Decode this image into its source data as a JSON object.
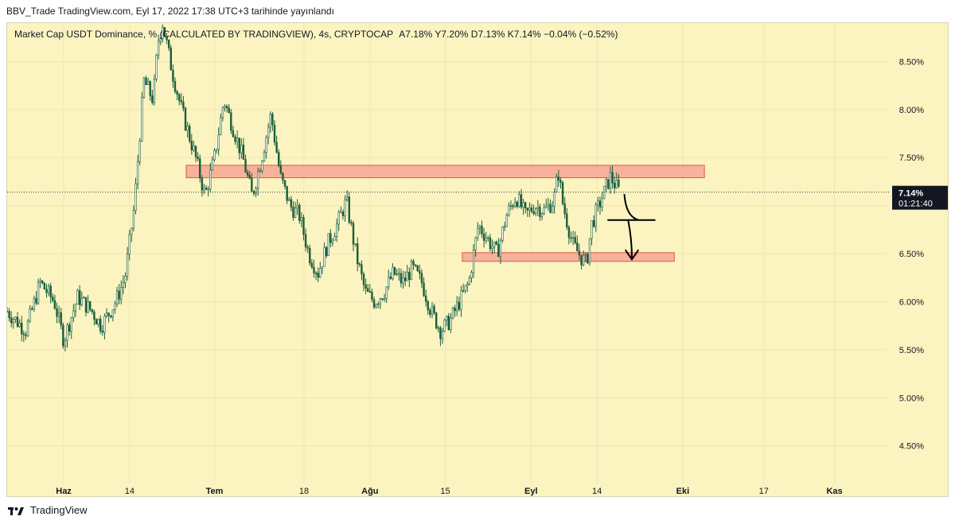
{
  "header": {
    "published": "BBV_Trade TradingView.com, Eyl 17, 2022 17:38 UTC+3 tarihinde yayınlandı"
  },
  "legend": {
    "title": "Market Cap USDT Dominance, % (CALCULATED BY TRADINGVIEW), 4s, CRYPTOCAP",
    "values": "A7.18%  Y7.20%  D7.13%  K7.14%  −0.04% (−0.52%)"
  },
  "price_badge": {
    "value": "7.14%",
    "timer": "01:21:40"
  },
  "footer": {
    "brand": "TradingView"
  },
  "colors": {
    "background": "#fbf4c1",
    "candle": "#1b5e3a",
    "zone_fill": "#f7a593",
    "zone_border": "#e2574c"
  },
  "chart_data": {
    "type": "candlestick",
    "y_unit": "%",
    "y_ticks": [
      "8.50%",
      "8.00%",
      "7.50%",
      "7.00%",
      "6.50%",
      "6.00%",
      "5.50%",
      "5.00%",
      "4.50%"
    ],
    "y_tick_values": [
      8.5,
      8.0,
      7.5,
      7.0,
      6.5,
      6.0,
      5.5,
      5.0,
      4.5
    ],
    "ylim": [
      4.1,
      8.9
    ],
    "x_ticks": [
      {
        "label": "Haz",
        "bold": true,
        "x": 0.06
      },
      {
        "label": "14",
        "bold": false,
        "x": 0.13
      },
      {
        "label": "Tem",
        "bold": true,
        "x": 0.22
      },
      {
        "label": "18",
        "bold": false,
        "x": 0.315
      },
      {
        "label": "Ağu",
        "bold": true,
        "x": 0.385
      },
      {
        "label": "15",
        "bold": false,
        "x": 0.465
      },
      {
        "label": "Eyl",
        "bold": true,
        "x": 0.556
      },
      {
        "label": "14",
        "bold": false,
        "x": 0.626
      },
      {
        "label": "Eki",
        "bold": true,
        "x": 0.717
      },
      {
        "label": "17",
        "bold": false,
        "x": 0.803
      },
      {
        "label": "Kas",
        "bold": true,
        "x": 0.878
      }
    ],
    "last_value": 7.14,
    "price_path": [
      [
        0,
        5.9
      ],
      [
        0.02,
        5.7
      ],
      [
        0.035,
        6.2
      ],
      [
        0.05,
        6.0
      ],
      [
        0.06,
        5.6
      ],
      [
        0.075,
        6.05
      ],
      [
        0.09,
        5.9
      ],
      [
        0.1,
        5.75
      ],
      [
        0.115,
        6.0
      ],
      [
        0.125,
        6.25
      ],
      [
        0.135,
        7.0
      ],
      [
        0.145,
        8.3
      ],
      [
        0.155,
        8.1
      ],
      [
        0.16,
        8.7
      ],
      [
        0.165,
        8.9
      ],
      [
        0.175,
        8.4
      ],
      [
        0.185,
        8.0
      ],
      [
        0.2,
        7.5
      ],
      [
        0.21,
        7.1
      ],
      [
        0.22,
        7.5
      ],
      [
        0.23,
        8.1
      ],
      [
        0.24,
        7.8
      ],
      [
        0.25,
        7.5
      ],
      [
        0.26,
        7.1
      ],
      [
        0.27,
        7.5
      ],
      [
        0.28,
        7.95
      ],
      [
        0.29,
        7.3
      ],
      [
        0.3,
        7.0
      ],
      [
        0.31,
        6.9
      ],
      [
        0.32,
        6.5
      ],
      [
        0.33,
        6.3
      ],
      [
        0.34,
        6.6
      ],
      [
        0.35,
        6.8
      ],
      [
        0.36,
        7.05
      ],
      [
        0.37,
        6.5
      ],
      [
        0.38,
        6.1
      ],
      [
        0.39,
        6.0
      ],
      [
        0.4,
        6.1
      ],
      [
        0.41,
        6.3
      ],
      [
        0.42,
        6.2
      ],
      [
        0.43,
        6.35
      ],
      [
        0.44,
        6.2
      ],
      [
        0.45,
        5.9
      ],
      [
        0.46,
        5.7
      ],
      [
        0.47,
        5.8
      ],
      [
        0.48,
        6.0
      ],
      [
        0.49,
        6.2
      ],
      [
        0.5,
        6.8
      ],
      [
        0.51,
        6.65
      ],
      [
        0.52,
        6.5
      ],
      [
        0.53,
        6.9
      ],
      [
        0.54,
        7.1
      ],
      [
        0.55,
        6.9
      ],
      [
        0.56,
        7.0
      ],
      [
        0.57,
        6.95
      ],
      [
        0.58,
        7.05
      ],
      [
        0.585,
        7.35
      ],
      [
        0.59,
        7.0
      ],
      [
        0.6,
        6.6
      ],
      [
        0.61,
        6.45
      ],
      [
        0.615,
        6.4
      ],
      [
        0.62,
        6.8
      ],
      [
        0.63,
        7.05
      ],
      [
        0.64,
        7.3
      ],
      [
        0.65,
        7.14
      ]
    ],
    "zones": [
      {
        "x0": 0.19,
        "x1": 0.74,
        "y_low": 7.29,
        "y_high": 7.42
      },
      {
        "x0": 0.483,
        "x1": 0.708,
        "y_low": 6.42,
        "y_high": 6.51
      }
    ]
  }
}
